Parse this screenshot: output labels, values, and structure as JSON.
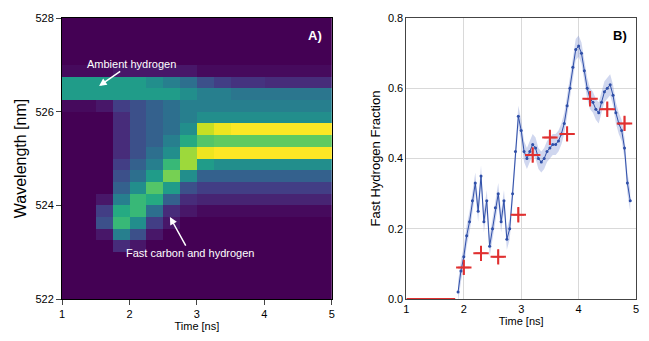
{
  "chart_data": [
    {
      "type": "heatmap",
      "panel": "A)",
      "xlabel": "Time [ns]",
      "ylabel": "Wavelength [nm]",
      "annotations": [
        "Ambient hydrogen",
        "Fast carbon and hydrogen"
      ],
      "x": [
        1.125,
        1.375,
        1.625,
        1.875,
        2.125,
        2.375,
        2.625,
        2.875,
        3.125,
        3.375,
        3.625,
        3.875,
        4.125,
        4.375,
        4.625,
        4.875
      ],
      "y": [
        522.125,
        522.375,
        522.625,
        522.875,
        523.125,
        523.375,
        523.625,
        523.875,
        524.125,
        524.375,
        524.625,
        524.875,
        525.125,
        525.375,
        525.625,
        525.875,
        526.125,
        526.375,
        526.625,
        526.875,
        527.125,
        527.375,
        527.625,
        527.875
      ],
      "cells": [
        [
          0.1,
          0.1,
          0.1,
          0.1,
          0.1,
          0.1,
          0.1,
          0.1,
          0.1,
          0.1,
          0.1,
          0.1,
          0.1,
          0.1,
          0.1,
          0.1
        ],
        [
          0.1,
          0.1,
          0.1,
          0.1,
          0.1,
          0.1,
          0.1,
          0.1,
          0.1,
          0.1,
          0.1,
          0.1,
          0.1,
          0.1,
          0.1,
          0.1
        ],
        [
          0.1,
          0.1,
          0.1,
          0.1,
          0.1,
          0.1,
          0.1,
          0.1,
          0.1,
          0.1,
          0.1,
          0.1,
          0.1,
          0.1,
          0.1,
          0.1
        ],
        [
          0.1,
          0.1,
          0.1,
          0.1,
          0.1,
          0.1,
          0.1,
          0.1,
          0.1,
          0.1,
          0.1,
          0.1,
          0.1,
          0.1,
          0.1,
          0.1
        ],
        [
          0.1,
          0.1,
          0.1,
          0.2,
          0.15,
          0.1,
          0.1,
          0.1,
          0.1,
          0.1,
          0.1,
          0.1,
          0.1,
          0.1,
          0.1,
          0.1
        ],
        [
          0.1,
          0.1,
          0.15,
          0.45,
          0.3,
          0.15,
          0.1,
          0.1,
          0.1,
          0.1,
          0.1,
          0.1,
          0.1,
          0.1,
          0.1,
          0.1
        ],
        [
          0.1,
          0.1,
          0.3,
          0.65,
          0.5,
          0.25,
          0.15,
          0.1,
          0.1,
          0.1,
          0.1,
          0.1,
          0.1,
          0.1,
          0.1,
          0.1
        ],
        [
          0.1,
          0.1,
          0.25,
          0.6,
          0.65,
          0.4,
          0.2,
          0.15,
          0.12,
          0.12,
          0.12,
          0.12,
          0.12,
          0.12,
          0.12,
          0.12
        ],
        [
          0.1,
          0.1,
          0.15,
          0.45,
          0.65,
          0.6,
          0.35,
          0.2,
          0.18,
          0.18,
          0.18,
          0.18,
          0.18,
          0.18,
          0.18,
          0.18
        ],
        [
          0.1,
          0.1,
          0.1,
          0.35,
          0.5,
          0.7,
          0.55,
          0.3,
          0.25,
          0.25,
          0.25,
          0.25,
          0.25,
          0.25,
          0.25,
          0.25
        ],
        [
          0.1,
          0.1,
          0.1,
          0.3,
          0.4,
          0.55,
          0.75,
          0.5,
          0.35,
          0.35,
          0.35,
          0.35,
          0.35,
          0.35,
          0.35,
          0.35
        ],
        [
          0.1,
          0.1,
          0.1,
          0.25,
          0.35,
          0.45,
          0.65,
          0.8,
          0.55,
          0.5,
          0.5,
          0.5,
          0.5,
          0.5,
          0.5,
          0.5
        ],
        [
          0.1,
          0.1,
          0.1,
          0.2,
          0.3,
          0.4,
          0.5,
          0.8,
          0.9,
          0.92,
          0.92,
          0.92,
          0.92,
          0.92,
          0.92,
          0.92
        ],
        [
          0.1,
          0.1,
          0.1,
          0.2,
          0.3,
          0.35,
          0.45,
          0.6,
          0.7,
          0.72,
          0.72,
          0.72,
          0.72,
          0.72,
          0.72,
          0.72
        ],
        [
          0.1,
          0.1,
          0.1,
          0.2,
          0.3,
          0.35,
          0.4,
          0.5,
          0.85,
          0.9,
          0.92,
          0.92,
          0.92,
          0.92,
          0.92,
          0.92
        ],
        [
          0.1,
          0.1,
          0.1,
          0.2,
          0.3,
          0.35,
          0.4,
          0.45,
          0.5,
          0.5,
          0.5,
          0.5,
          0.5,
          0.5,
          0.5,
          0.5
        ],
        [
          0.12,
          0.12,
          0.15,
          0.25,
          0.3,
          0.35,
          0.4,
          0.45,
          0.45,
          0.45,
          0.45,
          0.45,
          0.45,
          0.45,
          0.45,
          0.45
        ],
        [
          0.55,
          0.55,
          0.55,
          0.55,
          0.55,
          0.55,
          0.55,
          0.5,
          0.45,
          0.45,
          0.42,
          0.42,
          0.42,
          0.42,
          0.42,
          0.42
        ],
        [
          0.55,
          0.55,
          0.55,
          0.55,
          0.55,
          0.5,
          0.45,
          0.4,
          0.3,
          0.25,
          0.22,
          0.22,
          0.2,
          0.2,
          0.2,
          0.2
        ],
        [
          0.12,
          0.12,
          0.12,
          0.15,
          0.15,
          0.15,
          0.15,
          0.15,
          0.12,
          0.12,
          0.12,
          0.12,
          0.12,
          0.12,
          0.12,
          0.12
        ],
        [
          0.1,
          0.1,
          0.1,
          0.1,
          0.1,
          0.1,
          0.1,
          0.1,
          0.1,
          0.1,
          0.1,
          0.1,
          0.1,
          0.1,
          0.1,
          0.1
        ],
        [
          0.1,
          0.1,
          0.1,
          0.1,
          0.1,
          0.1,
          0.1,
          0.1,
          0.1,
          0.1,
          0.1,
          0.1,
          0.1,
          0.1,
          0.1,
          0.1
        ],
        [
          0.1,
          0.1,
          0.1,
          0.1,
          0.1,
          0.1,
          0.1,
          0.1,
          0.1,
          0.1,
          0.1,
          0.1,
          0.1,
          0.1,
          0.1,
          0.1
        ],
        [
          0.1,
          0.1,
          0.1,
          0.1,
          0.1,
          0.1,
          0.1,
          0.1,
          0.1,
          0.1,
          0.1,
          0.1,
          0.1,
          0.1,
          0.1,
          0.1
        ]
      ],
      "xlim": [
        1,
        5
      ],
      "ylim": [
        522,
        528
      ],
      "xticks": [
        1,
        2,
        3,
        4,
        5
      ],
      "yticks": [
        522,
        524,
        526,
        528
      ],
      "grid": false
    },
    {
      "type": "scatter",
      "panel": "B)",
      "xlabel": "Time [ns]",
      "ylabel": "Fast Hydrogen Fraction",
      "xlim": [
        1,
        5
      ],
      "ylim": [
        0,
        0.8
      ],
      "xticks": [
        1,
        2,
        3,
        4,
        5
      ],
      "yticks": [
        {
          "value": 0,
          "label": "0.0"
        },
        {
          "value": 0.2,
          "label": "0.2"
        },
        {
          "value": 0.4,
          "label": "0.4"
        },
        {
          "value": 0.6,
          "label": "0.6"
        },
        {
          "value": 0.8,
          "label": "0.8"
        }
      ],
      "grid": true,
      "series": [
        {
          "type": "scatter",
          "marker": "dot",
          "color": "#2f4fa8",
          "error": 0.03,
          "x": [
            1.9,
            1.95,
            2.0,
            2.05,
            2.1,
            2.15,
            2.2,
            2.25,
            2.3,
            2.35,
            2.4,
            2.45,
            2.5,
            2.55,
            2.6,
            2.65,
            2.7,
            2.75,
            2.8,
            2.85,
            2.9,
            2.95,
            3.0,
            3.05,
            3.1,
            3.15,
            3.2,
            3.25,
            3.3,
            3.35,
            3.4,
            3.45,
            3.5,
            3.55,
            3.6,
            3.65,
            3.7,
            3.75,
            3.8,
            3.85,
            3.9,
            3.95,
            4.0,
            4.05,
            4.1,
            4.15,
            4.2,
            4.25,
            4.3,
            4.35,
            4.4,
            4.45,
            4.5,
            4.55,
            4.6,
            4.65,
            4.7,
            4.75,
            4.8,
            4.85,
            4.9
          ],
          "values": [
            0.02,
            0.08,
            0.12,
            0.18,
            0.22,
            0.28,
            0.33,
            0.25,
            0.35,
            0.22,
            0.28,
            0.15,
            0.2,
            0.26,
            0.3,
            0.22,
            0.28,
            0.17,
            0.2,
            0.3,
            0.42,
            0.52,
            0.48,
            0.42,
            0.4,
            0.42,
            0.44,
            0.43,
            0.4,
            0.39,
            0.4,
            0.42,
            0.43,
            0.44,
            0.44,
            0.45,
            0.47,
            0.5,
            0.55,
            0.6,
            0.66,
            0.71,
            0.72,
            0.7,
            0.65,
            0.6,
            0.57,
            0.56,
            0.54,
            0.53,
            0.56,
            0.59,
            0.6,
            0.61,
            0.58,
            0.53,
            0.5,
            0.48,
            0.43,
            0.33,
            0.28
          ]
        },
        {
          "type": "line",
          "line_style": "solid",
          "color": "#e03030",
          "x": [
            1.0,
            1.85
          ],
          "values": [
            0,
            0
          ]
        },
        {
          "type": "scatter",
          "marker": "cross",
          "color": "#e03030",
          "x_error": 0.1,
          "y_error": 0.02,
          "x": [
            2.0,
            2.3,
            2.6,
            2.95,
            3.2,
            3.5,
            3.8,
            4.2,
            4.5,
            4.8
          ],
          "values": [
            0.09,
            0.13,
            0.12,
            0.24,
            0.41,
            0.46,
            0.47,
            0.57,
            0.54,
            0.5
          ]
        }
      ]
    }
  ]
}
